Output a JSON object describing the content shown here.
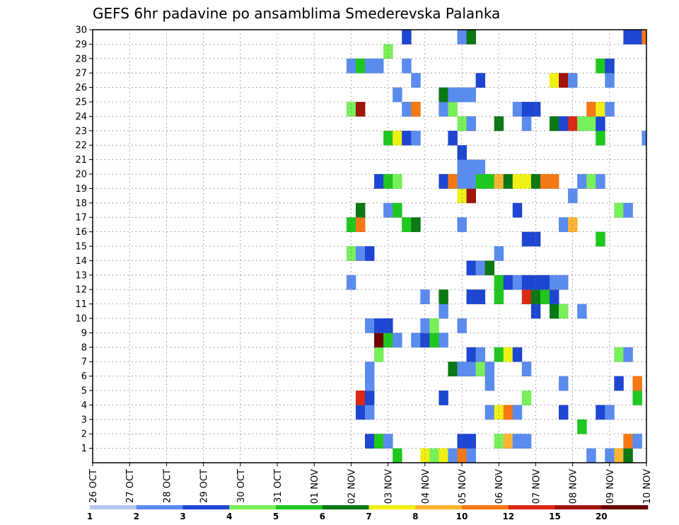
{
  "chart_data": {
    "type": "heatmap",
    "title": "GEFS 6hr padavine po ansamblima Smederevska Palanka",
    "xlabel": "",
    "ylabel": "",
    "x_start": "2015-10-26T00",
    "x_end": "2015-11-10T00",
    "time_step_hours": 6,
    "x_tick_labels": [
      "26 OCT",
      "27 OCT",
      "28 OCT",
      "29 OCT",
      "30 OCT",
      "31 OCT",
      "01 NOV",
      "02 NOV",
      "03 NOV",
      "04 NOV",
      "05 NOV",
      "06 NOV",
      "07 NOV",
      "08 NOV",
      "09 NOV",
      "10 NOV"
    ],
    "y_tick_labels": [
      "1",
      "2",
      "3",
      "4",
      "5",
      "6",
      "7",
      "8",
      "9",
      "10",
      "11",
      "12",
      "13",
      "14",
      "15",
      "16",
      "17",
      "18",
      "19",
      "20",
      "21",
      "22",
      "23",
      "24",
      "25",
      "26",
      "27",
      "28",
      "29",
      "30"
    ],
    "ylim": [
      0,
      30
    ],
    "grid": true,
    "legend": {
      "position": "bottom",
      "labels": [
        "1",
        "2",
        "3",
        "4",
        "5",
        "6",
        "7",
        "8",
        "10",
        "12",
        "15",
        "20"
      ],
      "colors": [
        "#b4c8f4",
        "#5a8cf0",
        "#1e46d2",
        "#78f05a",
        "#1ec81e",
        "#0a7814",
        "#f0f014",
        "#fab432",
        "#f57814",
        "#dc2814",
        "#a0140a",
        "#6e0000"
      ]
    },
    "cells": [
      {
        "t": "2015-11-03T06",
        "m": 0,
        "c": 4
      },
      {
        "t": "2015-11-04T00",
        "m": 0,
        "c": 6
      },
      {
        "t": "2015-11-04T06",
        "m": 0,
        "c": 3
      },
      {
        "t": "2015-11-04T12",
        "m": 0,
        "c": 6
      },
      {
        "t": "2015-11-04T18",
        "m": 0,
        "c": 1
      },
      {
        "t": "2015-11-05T00",
        "m": 0,
        "c": 8
      },
      {
        "t": "2015-11-05T06",
        "m": 0,
        "c": 1
      },
      {
        "t": "2015-11-08T12",
        "m": 0,
        "c": 1
      },
      {
        "t": "2015-11-09T00",
        "m": 0,
        "c": 1
      },
      {
        "t": "2015-11-09T06",
        "m": 0,
        "c": 7
      },
      {
        "t": "2015-11-09T12",
        "m": 0,
        "c": 5
      },
      {
        "t": "2015-11-02T12",
        "m": 1,
        "c": 2
      },
      {
        "t": "2015-11-02T18",
        "m": 1,
        "c": 4
      },
      {
        "t": "2015-11-03T00",
        "m": 1,
        "c": 1
      },
      {
        "t": "2015-11-05T00",
        "m": 1,
        "c": 2
      },
      {
        "t": "2015-11-05T06",
        "m": 1,
        "c": 2
      },
      {
        "t": "2015-11-06T00",
        "m": 1,
        "c": 3
      },
      {
        "t": "2015-11-06T06",
        "m": 1,
        "c": 7
      },
      {
        "t": "2015-11-06T12",
        "m": 1,
        "c": 1
      },
      {
        "t": "2015-11-06T18",
        "m": 1,
        "c": 1
      },
      {
        "t": "2015-11-09T12",
        "m": 1,
        "c": 8
      },
      {
        "t": "2015-11-09T18",
        "m": 1,
        "c": 1
      },
      {
        "t": "2015-11-08T06",
        "m": 2,
        "c": 4
      },
      {
        "t": "2015-11-02T06",
        "m": 3,
        "c": 2
      },
      {
        "t": "2015-11-02T12",
        "m": 3,
        "c": 1
      },
      {
        "t": "2015-11-05T18",
        "m": 3,
        "c": 1
      },
      {
        "t": "2015-11-06T00",
        "m": 3,
        "c": 6
      },
      {
        "t": "2015-11-06T06",
        "m": 3,
        "c": 8
      },
      {
        "t": "2015-11-06T12",
        "m": 3,
        "c": 1
      },
      {
        "t": "2015-11-07T18",
        "m": 3,
        "c": 2
      },
      {
        "t": "2015-11-08T18",
        "m": 3,
        "c": 2
      },
      {
        "t": "2015-11-09T00",
        "m": 3,
        "c": 1
      },
      {
        "t": "2015-11-02T06",
        "m": 4,
        "c": 9
      },
      {
        "t": "2015-11-02T12",
        "m": 4,
        "c": 2
      },
      {
        "t": "2015-11-04T12",
        "m": 4,
        "c": 2
      },
      {
        "t": "2015-11-06T18",
        "m": 4,
        "c": 3
      },
      {
        "t": "2015-11-09T18",
        "m": 4,
        "c": 4
      },
      {
        "t": "2015-11-02T12",
        "m": 5,
        "c": 1
      },
      {
        "t": "2015-11-05T18",
        "m": 5,
        "c": 1
      },
      {
        "t": "2015-11-07T18",
        "m": 5,
        "c": 1
      },
      {
        "t": "2015-11-09T06",
        "m": 5,
        "c": 2
      },
      {
        "t": "2015-11-09T18",
        "m": 5,
        "c": 8
      },
      {
        "t": "2015-11-02T12",
        "m": 6,
        "c": 1
      },
      {
        "t": "2015-11-04T18",
        "m": 6,
        "c": 5
      },
      {
        "t": "2015-11-05T00",
        "m": 6,
        "c": 1
      },
      {
        "t": "2015-11-05T06",
        "m": 6,
        "c": 1
      },
      {
        "t": "2015-11-05T12",
        "m": 6,
        "c": 3
      },
      {
        "t": "2015-11-05T18",
        "m": 6,
        "c": 1
      },
      {
        "t": "2015-11-06T18",
        "m": 6,
        "c": 1
      },
      {
        "t": "2015-11-02T18",
        "m": 7,
        "c": 3
      },
      {
        "t": "2015-11-05T06",
        "m": 7,
        "c": 2
      },
      {
        "t": "2015-11-05T12",
        "m": 7,
        "c": 1
      },
      {
        "t": "2015-11-06T00",
        "m": 7,
        "c": 4
      },
      {
        "t": "2015-11-06T06",
        "m": 7,
        "c": 6
      },
      {
        "t": "2015-11-06T12",
        "m": 7,
        "c": 2
      },
      {
        "t": "2015-11-09T06",
        "m": 7,
        "c": 3
      },
      {
        "t": "2015-11-09T12",
        "m": 7,
        "c": 1
      },
      {
        "t": "2015-11-02T18",
        "m": 8,
        "c": 11
      },
      {
        "t": "2015-11-03T00",
        "m": 8,
        "c": 4
      },
      {
        "t": "2015-11-03T06",
        "m": 8,
        "c": 1
      },
      {
        "t": "2015-11-03T18",
        "m": 8,
        "c": 1
      },
      {
        "t": "2015-11-04T00",
        "m": 8,
        "c": 2
      },
      {
        "t": "2015-11-04T06",
        "m": 8,
        "c": 4
      },
      {
        "t": "2015-11-04T12",
        "m": 8,
        "c": 1
      },
      {
        "t": "2015-11-02T12",
        "m": 9,
        "c": 1
      },
      {
        "t": "2015-11-02T18",
        "m": 9,
        "c": 2
      },
      {
        "t": "2015-11-03T00",
        "m": 9,
        "c": 2
      },
      {
        "t": "2015-11-04T00",
        "m": 9,
        "c": 1
      },
      {
        "t": "2015-11-04T06",
        "m": 9,
        "c": 3
      },
      {
        "t": "2015-11-05T00",
        "m": 9,
        "c": 1
      },
      {
        "t": "2015-11-04T12",
        "m": 10,
        "c": 1
      },
      {
        "t": "2015-11-07T00",
        "m": 10,
        "c": 2
      },
      {
        "t": "2015-11-07T12",
        "m": 10,
        "c": 5
      },
      {
        "t": "2015-11-07T18",
        "m": 10,
        "c": 3
      },
      {
        "t": "2015-11-08T06",
        "m": 10,
        "c": 1
      },
      {
        "t": "2015-11-04T00",
        "m": 11,
        "c": 1
      },
      {
        "t": "2015-11-04T12",
        "m": 11,
        "c": 5
      },
      {
        "t": "2015-11-05T06",
        "m": 11,
        "c": 2
      },
      {
        "t": "2015-11-05T12",
        "m": 11,
        "c": 2
      },
      {
        "t": "2015-11-06T00",
        "m": 11,
        "c": 4
      },
      {
        "t": "2015-11-06T18",
        "m": 11,
        "c": 9
      },
      {
        "t": "2015-11-07T00",
        "m": 11,
        "c": 5
      },
      {
        "t": "2015-11-07T06",
        "m": 11,
        "c": 4
      },
      {
        "t": "2015-11-07T12",
        "m": 11,
        "c": 2
      },
      {
        "t": "2015-11-02T00",
        "m": 12,
        "c": 1
      },
      {
        "t": "2015-11-06T00",
        "m": 12,
        "c": 4
      },
      {
        "t": "2015-11-06T06",
        "m": 12,
        "c": 2
      },
      {
        "t": "2015-11-06T12",
        "m": 12,
        "c": 1
      },
      {
        "t": "2015-11-06T18",
        "m": 12,
        "c": 2
      },
      {
        "t": "2015-11-07T00",
        "m": 12,
        "c": 2
      },
      {
        "t": "2015-11-07T06",
        "m": 12,
        "c": 2
      },
      {
        "t": "2015-11-07T12",
        "m": 12,
        "c": 1
      },
      {
        "t": "2015-11-07T18",
        "m": 12,
        "c": 1
      },
      {
        "t": "2015-11-05T06",
        "m": 13,
        "c": 2
      },
      {
        "t": "2015-11-05T12",
        "m": 13,
        "c": 1
      },
      {
        "t": "2015-11-05T18",
        "m": 13,
        "c": 5
      },
      {
        "t": "2015-11-02T00",
        "m": 14,
        "c": 3
      },
      {
        "t": "2015-11-02T06",
        "m": 14,
        "c": 1
      },
      {
        "t": "2015-11-02T12",
        "m": 14,
        "c": 2
      },
      {
        "t": "2015-11-06T00",
        "m": 14,
        "c": 1
      },
      {
        "t": "2015-11-06T18",
        "m": 15,
        "c": 2
      },
      {
        "t": "2015-11-07T00",
        "m": 15,
        "c": 2
      },
      {
        "t": "2015-11-08T18",
        "m": 15,
        "c": 4
      },
      {
        "t": "2015-11-02T00",
        "m": 16,
        "c": 4
      },
      {
        "t": "2015-11-02T06",
        "m": 16,
        "c": 8
      },
      {
        "t": "2015-11-03T12",
        "m": 16,
        "c": 4
      },
      {
        "t": "2015-11-03T18",
        "m": 16,
        "c": 5
      },
      {
        "t": "2015-11-05T00",
        "m": 16,
        "c": 1
      },
      {
        "t": "2015-11-07T18",
        "m": 16,
        "c": 1
      },
      {
        "t": "2015-11-08T00",
        "m": 16,
        "c": 7
      },
      {
        "t": "2015-11-02T06",
        "m": 17,
        "c": 5
      },
      {
        "t": "2015-11-03T00",
        "m": 17,
        "c": 1
      },
      {
        "t": "2015-11-03T06",
        "m": 17,
        "c": 4
      },
      {
        "t": "2015-11-06T12",
        "m": 17,
        "c": 2
      },
      {
        "t": "2015-11-09T06",
        "m": 17,
        "c": 3
      },
      {
        "t": "2015-11-09T12",
        "m": 17,
        "c": 1
      },
      {
        "t": "2015-11-05T00",
        "m": 18,
        "c": 6
      },
      {
        "t": "2015-11-05T06",
        "m": 18,
        "c": 10
      },
      {
        "t": "2015-11-08T00",
        "m": 18,
        "c": 1
      },
      {
        "t": "2015-11-02T18",
        "m": 19,
        "c": 2
      },
      {
        "t": "2015-11-03T00",
        "m": 19,
        "c": 4
      },
      {
        "t": "2015-11-03T06",
        "m": 19,
        "c": 3
      },
      {
        "t": "2015-11-04T12",
        "m": 19,
        "c": 2
      },
      {
        "t": "2015-11-04T18",
        "m": 19,
        "c": 8
      },
      {
        "t": "2015-11-05T00",
        "m": 19,
        "c": 1
      },
      {
        "t": "2015-11-05T06",
        "m": 19,
        "c": 1
      },
      {
        "t": "2015-11-05T12",
        "m": 19,
        "c": 4
      },
      {
        "t": "2015-11-05T18",
        "m": 19,
        "c": 4
      },
      {
        "t": "2015-11-06T00",
        "m": 19,
        "c": 7
      },
      {
        "t": "2015-11-06T06",
        "m": 19,
        "c": 5
      },
      {
        "t": "2015-11-06T12",
        "m": 19,
        "c": 6
      },
      {
        "t": "2015-11-06T18",
        "m": 19,
        "c": 6
      },
      {
        "t": "2015-11-07T00",
        "m": 19,
        "c": 5
      },
      {
        "t": "2015-11-07T06",
        "m": 19,
        "c": 8
      },
      {
        "t": "2015-11-07T12",
        "m": 19,
        "c": 8
      },
      {
        "t": "2015-11-08T06",
        "m": 19,
        "c": 1
      },
      {
        "t": "2015-11-08T12",
        "m": 19,
        "c": 3
      },
      {
        "t": "2015-11-08T18",
        "m": 19,
        "c": 1
      },
      {
        "t": "2015-11-05T00",
        "m": 20,
        "c": 1
      },
      {
        "t": "2015-11-05T06",
        "m": 20,
        "c": 1
      },
      {
        "t": "2015-11-05T12",
        "m": 20,
        "c": 1
      },
      {
        "t": "2015-11-05T00",
        "m": 21,
        "c": 2
      },
      {
        "t": "2015-11-03T00",
        "m": 22,
        "c": 4
      },
      {
        "t": "2015-11-03T06",
        "m": 22,
        "c": 6
      },
      {
        "t": "2015-11-03T12",
        "m": 22,
        "c": 2
      },
      {
        "t": "2015-11-03T18",
        "m": 22,
        "c": 1
      },
      {
        "t": "2015-11-04T18",
        "m": 22,
        "c": 2
      },
      {
        "t": "2015-11-08T18",
        "m": 22,
        "c": 4
      },
      {
        "t": "2015-11-10T00",
        "m": 22,
        "c": 1
      },
      {
        "t": "2015-11-05T00",
        "m": 23,
        "c": 3
      },
      {
        "t": "2015-11-05T06",
        "m": 23,
        "c": 1
      },
      {
        "t": "2015-11-06T00",
        "m": 23,
        "c": 5
      },
      {
        "t": "2015-11-06T18",
        "m": 23,
        "c": 1
      },
      {
        "t": "2015-11-07T12",
        "m": 23,
        "c": 5
      },
      {
        "t": "2015-11-07T18",
        "m": 23,
        "c": 2
      },
      {
        "t": "2015-11-08T00",
        "m": 23,
        "c": 9
      },
      {
        "t": "2015-11-08T06",
        "m": 23,
        "c": 3
      },
      {
        "t": "2015-11-08T12",
        "m": 23,
        "c": 3
      },
      {
        "t": "2015-11-08T18",
        "m": 23,
        "c": 2
      },
      {
        "t": "2015-11-02T00",
        "m": 24,
        "c": 3
      },
      {
        "t": "2015-11-02T06",
        "m": 24,
        "c": 10
      },
      {
        "t": "2015-11-03T12",
        "m": 24,
        "c": 1
      },
      {
        "t": "2015-11-03T18",
        "m": 24,
        "c": 8
      },
      {
        "t": "2015-11-04T12",
        "m": 24,
        "c": 1
      },
      {
        "t": "2015-11-04T18",
        "m": 24,
        "c": 3
      },
      {
        "t": "2015-11-06T12",
        "m": 24,
        "c": 1
      },
      {
        "t": "2015-11-06T18",
        "m": 24,
        "c": 2
      },
      {
        "t": "2015-11-07T00",
        "m": 24,
        "c": 2
      },
      {
        "t": "2015-11-08T12",
        "m": 24,
        "c": 8
      },
      {
        "t": "2015-11-08T18",
        "m": 24,
        "c": 6
      },
      {
        "t": "2015-11-09T00",
        "m": 24,
        "c": 1
      },
      {
        "t": "2015-11-03T06",
        "m": 25,
        "c": 1
      },
      {
        "t": "2015-11-04T12",
        "m": 25,
        "c": 5
      },
      {
        "t": "2015-11-04T18",
        "m": 25,
        "c": 1
      },
      {
        "t": "2015-11-05T00",
        "m": 25,
        "c": 1
      },
      {
        "t": "2015-11-05T06",
        "m": 25,
        "c": 1
      },
      {
        "t": "2015-11-03T18",
        "m": 26,
        "c": 1
      },
      {
        "t": "2015-11-05T12",
        "m": 26,
        "c": 2
      },
      {
        "t": "2015-11-07T12",
        "m": 26,
        "c": 6
      },
      {
        "t": "2015-11-07T18",
        "m": 26,
        "c": 10
      },
      {
        "t": "2015-11-08T00",
        "m": 26,
        "c": 1
      },
      {
        "t": "2015-11-09T00",
        "m": 26,
        "c": 1
      },
      {
        "t": "2015-11-02T00",
        "m": 27,
        "c": 1
      },
      {
        "t": "2015-11-02T06",
        "m": 27,
        "c": 4
      },
      {
        "t": "2015-11-02T12",
        "m": 27,
        "c": 1
      },
      {
        "t": "2015-11-02T18",
        "m": 27,
        "c": 1
      },
      {
        "t": "2015-11-03T12",
        "m": 27,
        "c": 1
      },
      {
        "t": "2015-11-08T18",
        "m": 27,
        "c": 4
      },
      {
        "t": "2015-11-09T00",
        "m": 27,
        "c": 2
      },
      {
        "t": "2015-11-03T00",
        "m": 28,
        "c": 3
      },
      {
        "t": "2015-11-03T12",
        "m": 29,
        "c": 2
      },
      {
        "t": "2015-11-05T00",
        "m": 29,
        "c": 1
      },
      {
        "t": "2015-11-05T06",
        "m": 29,
        "c": 5
      },
      {
        "t": "2015-11-09T12",
        "m": 29,
        "c": 2
      },
      {
        "t": "2015-11-09T18",
        "m": 29,
        "c": 2
      },
      {
        "t": "2015-11-10T00",
        "m": 29,
        "c": 8
      }
    ]
  }
}
